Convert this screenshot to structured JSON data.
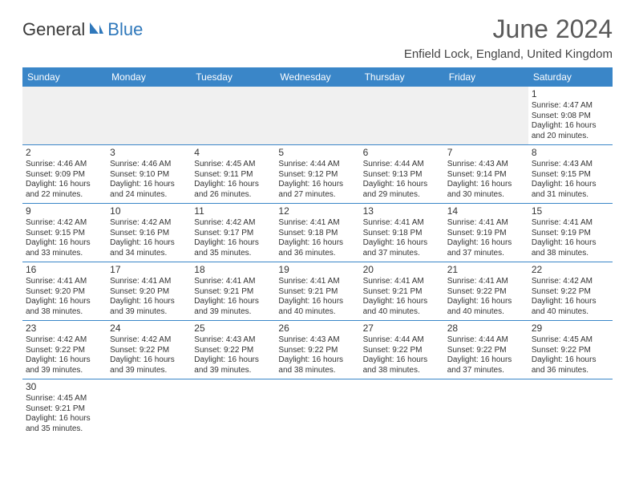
{
  "logo": {
    "text_dark": "General",
    "text_blue": "Blue"
  },
  "title": "June 2024",
  "location": "Enfield Lock, England, United Kingdom",
  "day_headers": [
    "Sunday",
    "Monday",
    "Tuesday",
    "Wednesday",
    "Thursday",
    "Friday",
    "Saturday"
  ],
  "colors": {
    "header_bg": "#3a86c8",
    "header_text": "#ffffff",
    "cell_border": "#3a86c8",
    "empty_bg": "#f0f0f0",
    "text": "#333333",
    "title_color": "#5a5a5a"
  },
  "weeks": [
    [
      {
        "empty": true
      },
      {
        "empty": true
      },
      {
        "empty": true
      },
      {
        "empty": true
      },
      {
        "empty": true
      },
      {
        "empty": true
      },
      {
        "day": "1",
        "sunrise": "Sunrise: 4:47 AM",
        "sunset": "Sunset: 9:08 PM",
        "daylight1": "Daylight: 16 hours",
        "daylight2": "and 20 minutes."
      }
    ],
    [
      {
        "day": "2",
        "sunrise": "Sunrise: 4:46 AM",
        "sunset": "Sunset: 9:09 PM",
        "daylight1": "Daylight: 16 hours",
        "daylight2": "and 22 minutes."
      },
      {
        "day": "3",
        "sunrise": "Sunrise: 4:46 AM",
        "sunset": "Sunset: 9:10 PM",
        "daylight1": "Daylight: 16 hours",
        "daylight2": "and 24 minutes."
      },
      {
        "day": "4",
        "sunrise": "Sunrise: 4:45 AM",
        "sunset": "Sunset: 9:11 PM",
        "daylight1": "Daylight: 16 hours",
        "daylight2": "and 26 minutes."
      },
      {
        "day": "5",
        "sunrise": "Sunrise: 4:44 AM",
        "sunset": "Sunset: 9:12 PM",
        "daylight1": "Daylight: 16 hours",
        "daylight2": "and 27 minutes."
      },
      {
        "day": "6",
        "sunrise": "Sunrise: 4:44 AM",
        "sunset": "Sunset: 9:13 PM",
        "daylight1": "Daylight: 16 hours",
        "daylight2": "and 29 minutes."
      },
      {
        "day": "7",
        "sunrise": "Sunrise: 4:43 AM",
        "sunset": "Sunset: 9:14 PM",
        "daylight1": "Daylight: 16 hours",
        "daylight2": "and 30 minutes."
      },
      {
        "day": "8",
        "sunrise": "Sunrise: 4:43 AM",
        "sunset": "Sunset: 9:15 PM",
        "daylight1": "Daylight: 16 hours",
        "daylight2": "and 31 minutes."
      }
    ],
    [
      {
        "day": "9",
        "sunrise": "Sunrise: 4:42 AM",
        "sunset": "Sunset: 9:15 PM",
        "daylight1": "Daylight: 16 hours",
        "daylight2": "and 33 minutes."
      },
      {
        "day": "10",
        "sunrise": "Sunrise: 4:42 AM",
        "sunset": "Sunset: 9:16 PM",
        "daylight1": "Daylight: 16 hours",
        "daylight2": "and 34 minutes."
      },
      {
        "day": "11",
        "sunrise": "Sunrise: 4:42 AM",
        "sunset": "Sunset: 9:17 PM",
        "daylight1": "Daylight: 16 hours",
        "daylight2": "and 35 minutes."
      },
      {
        "day": "12",
        "sunrise": "Sunrise: 4:41 AM",
        "sunset": "Sunset: 9:18 PM",
        "daylight1": "Daylight: 16 hours",
        "daylight2": "and 36 minutes."
      },
      {
        "day": "13",
        "sunrise": "Sunrise: 4:41 AM",
        "sunset": "Sunset: 9:18 PM",
        "daylight1": "Daylight: 16 hours",
        "daylight2": "and 37 minutes."
      },
      {
        "day": "14",
        "sunrise": "Sunrise: 4:41 AM",
        "sunset": "Sunset: 9:19 PM",
        "daylight1": "Daylight: 16 hours",
        "daylight2": "and 37 minutes."
      },
      {
        "day": "15",
        "sunrise": "Sunrise: 4:41 AM",
        "sunset": "Sunset: 9:19 PM",
        "daylight1": "Daylight: 16 hours",
        "daylight2": "and 38 minutes."
      }
    ],
    [
      {
        "day": "16",
        "sunrise": "Sunrise: 4:41 AM",
        "sunset": "Sunset: 9:20 PM",
        "daylight1": "Daylight: 16 hours",
        "daylight2": "and 38 minutes."
      },
      {
        "day": "17",
        "sunrise": "Sunrise: 4:41 AM",
        "sunset": "Sunset: 9:20 PM",
        "daylight1": "Daylight: 16 hours",
        "daylight2": "and 39 minutes."
      },
      {
        "day": "18",
        "sunrise": "Sunrise: 4:41 AM",
        "sunset": "Sunset: 9:21 PM",
        "daylight1": "Daylight: 16 hours",
        "daylight2": "and 39 minutes."
      },
      {
        "day": "19",
        "sunrise": "Sunrise: 4:41 AM",
        "sunset": "Sunset: 9:21 PM",
        "daylight1": "Daylight: 16 hours",
        "daylight2": "and 40 minutes."
      },
      {
        "day": "20",
        "sunrise": "Sunrise: 4:41 AM",
        "sunset": "Sunset: 9:21 PM",
        "daylight1": "Daylight: 16 hours",
        "daylight2": "and 40 minutes."
      },
      {
        "day": "21",
        "sunrise": "Sunrise: 4:41 AM",
        "sunset": "Sunset: 9:22 PM",
        "daylight1": "Daylight: 16 hours",
        "daylight2": "and 40 minutes."
      },
      {
        "day": "22",
        "sunrise": "Sunrise: 4:42 AM",
        "sunset": "Sunset: 9:22 PM",
        "daylight1": "Daylight: 16 hours",
        "daylight2": "and 40 minutes."
      }
    ],
    [
      {
        "day": "23",
        "sunrise": "Sunrise: 4:42 AM",
        "sunset": "Sunset: 9:22 PM",
        "daylight1": "Daylight: 16 hours",
        "daylight2": "and 39 minutes."
      },
      {
        "day": "24",
        "sunrise": "Sunrise: 4:42 AM",
        "sunset": "Sunset: 9:22 PM",
        "daylight1": "Daylight: 16 hours",
        "daylight2": "and 39 minutes."
      },
      {
        "day": "25",
        "sunrise": "Sunrise: 4:43 AM",
        "sunset": "Sunset: 9:22 PM",
        "daylight1": "Daylight: 16 hours",
        "daylight2": "and 39 minutes."
      },
      {
        "day": "26",
        "sunrise": "Sunrise: 4:43 AM",
        "sunset": "Sunset: 9:22 PM",
        "daylight1": "Daylight: 16 hours",
        "daylight2": "and 38 minutes."
      },
      {
        "day": "27",
        "sunrise": "Sunrise: 4:44 AM",
        "sunset": "Sunset: 9:22 PM",
        "daylight1": "Daylight: 16 hours",
        "daylight2": "and 38 minutes."
      },
      {
        "day": "28",
        "sunrise": "Sunrise: 4:44 AM",
        "sunset": "Sunset: 9:22 PM",
        "daylight1": "Daylight: 16 hours",
        "daylight2": "and 37 minutes."
      },
      {
        "day": "29",
        "sunrise": "Sunrise: 4:45 AM",
        "sunset": "Sunset: 9:22 PM",
        "daylight1": "Daylight: 16 hours",
        "daylight2": "and 36 minutes."
      }
    ],
    [
      {
        "day": "30",
        "sunrise": "Sunrise: 4:45 AM",
        "sunset": "Sunset: 9:21 PM",
        "daylight1": "Daylight: 16 hours",
        "daylight2": "and 35 minutes."
      },
      {
        "trailing": true
      },
      {
        "trailing": true
      },
      {
        "trailing": true
      },
      {
        "trailing": true
      },
      {
        "trailing": true
      },
      {
        "trailing": true
      }
    ]
  ]
}
